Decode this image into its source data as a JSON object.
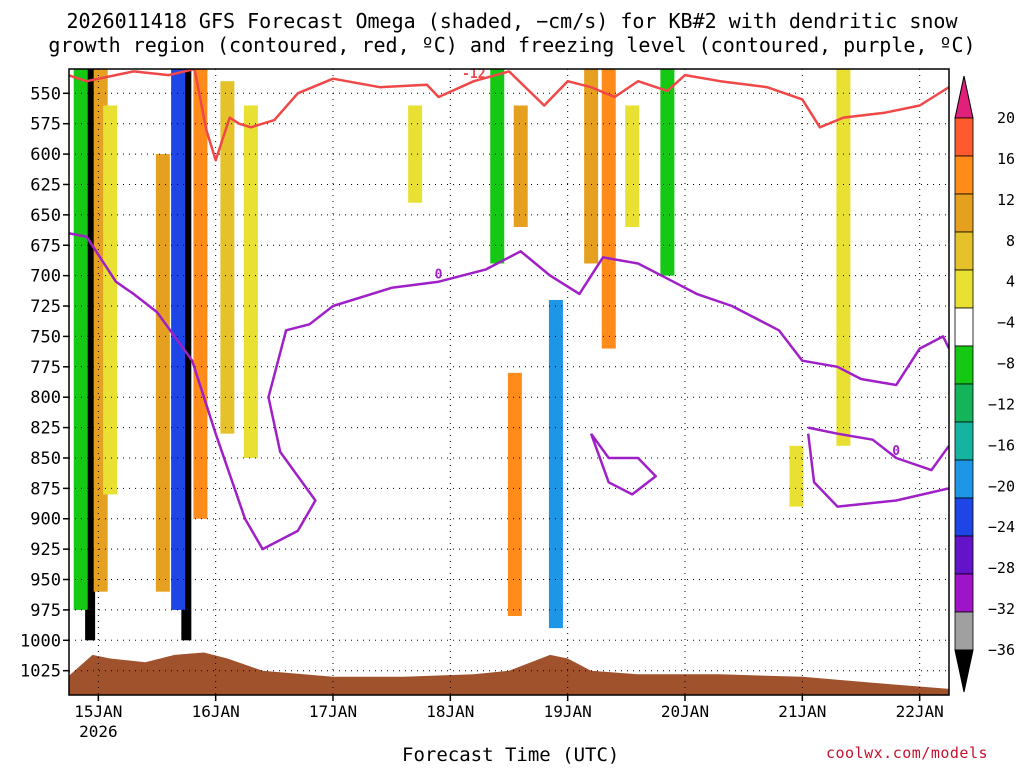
{
  "chart_data": {
    "type": "heatmap",
    "title_line1": "2026011418 GFS Forecast Omega (shaded, −cm/s) for KB#2 with dendritic snow",
    "title_line2": "growth region (contoured, red, ºC) and freezing level (contoured, purple, ºC)",
    "xlabel": "Forecast Time (UTC)",
    "ylabel": "Pressure (hPa)",
    "credit": "coolwx.com/models",
    "x_ticks": [
      {
        "day": 15,
        "label": "15JAN",
        "sublabel": "2026"
      },
      {
        "day": 16,
        "label": "16JAN"
      },
      {
        "day": 17,
        "label": "17JAN"
      },
      {
        "day": 18,
        "label": "18JAN"
      },
      {
        "day": 19,
        "label": "19JAN"
      },
      {
        "day": 20,
        "label": "20JAN"
      },
      {
        "day": 21,
        "label": "21JAN"
      },
      {
        "day": 22,
        "label": "22JAN"
      }
    ],
    "xlim_days": [
      14.75,
      22.25
    ],
    "y_ticks": [
      550,
      575,
      600,
      625,
      650,
      675,
      700,
      725,
      750,
      775,
      800,
      825,
      850,
      875,
      900,
      925,
      950,
      975,
      1000,
      1025
    ],
    "ylim_hpa": [
      530,
      1045
    ],
    "colorbar": {
      "labels": [
        "20",
        "16",
        "12",
        "8",
        "4",
        "−4",
        "−8",
        "−12",
        "−16",
        "−20",
        "−24",
        "−28",
        "−32",
        "−36"
      ],
      "colors": [
        "#e02a4a",
        "#ff5a2e",
        "#ff8c1a",
        "#e6a020",
        "#e6c22a",
        "#e8e032",
        "#ffffff",
        "#14c814",
        "#14b45a",
        "#14b4a0",
        "#1e96e6",
        "#1e46e6",
        "#6414c8",
        "#a014c8",
        "#a0a0a0"
      ],
      "top_arrow_color": "#e0207a",
      "bottom_arrow_color": "#000000"
    },
    "omega_columns": [
      {
        "day": 14.93,
        "p_top": 530,
        "p_bot": 1000,
        "color": "#000000"
      },
      {
        "day": 14.85,
        "p_top": 530,
        "p_bot": 975,
        "color": "#14c814"
      },
      {
        "day": 15.02,
        "p_top": 530,
        "p_bot": 960,
        "color": "#e6a020"
      },
      {
        "day": 15.1,
        "p_top": 560,
        "p_bot": 880,
        "color": "#e8e032"
      },
      {
        "day": 15.55,
        "p_top": 600,
        "p_bot": 960,
        "color": "#e6a020"
      },
      {
        "day": 15.75,
        "p_top": 530,
        "p_bot": 1000,
        "color": "#000000"
      },
      {
        "day": 15.68,
        "p_top": 530,
        "p_bot": 975,
        "color": "#1e46e6"
      },
      {
        "day": 15.87,
        "p_top": 530,
        "p_bot": 900,
        "color": "#ff8c1a"
      },
      {
        "day": 16.1,
        "p_top": 540,
        "p_bot": 830,
        "color": "#e6c22a"
      },
      {
        "day": 16.3,
        "p_top": 560,
        "p_bot": 850,
        "color": "#e8e032"
      },
      {
        "day": 17.7,
        "p_top": 560,
        "p_bot": 640,
        "color": "#e8e032"
      },
      {
        "day": 18.4,
        "p_top": 530,
        "p_bot": 690,
        "color": "#14c814"
      },
      {
        "day": 18.6,
        "p_top": 560,
        "p_bot": 660,
        "color": "#e6a020"
      },
      {
        "day": 18.55,
        "p_top": 780,
        "p_bot": 980,
        "color": "#ff8c1a"
      },
      {
        "day": 18.9,
        "p_top": 720,
        "p_bot": 990,
        "color": "#1e96e6"
      },
      {
        "day": 19.2,
        "p_top": 530,
        "p_bot": 690,
        "color": "#e6a020"
      },
      {
        "day": 19.35,
        "p_top": 530,
        "p_bot": 760,
        "color": "#ff8c1a"
      },
      {
        "day": 19.55,
        "p_top": 560,
        "p_bot": 660,
        "color": "#e8e032"
      },
      {
        "day": 19.85,
        "p_top": 530,
        "p_bot": 700,
        "color": "#14c814"
      },
      {
        "day": 20.95,
        "p_top": 840,
        "p_bot": 890,
        "color": "#e8e032"
      },
      {
        "day": 21.35,
        "p_top": 530,
        "p_bot": 840,
        "color": "#e8e032"
      }
    ],
    "terrain_color": "#a0522d",
    "contours": [
      {
        "label": "-12",
        "color": "#f04848",
        "points": [
          [
            14.74,
            535
          ],
          [
            14.9,
            540
          ],
          [
            15.3,
            532
          ],
          [
            15.6,
            535
          ],
          [
            15.82,
            530
          ],
          [
            15.92,
            580
          ],
          [
            16.0,
            605
          ],
          [
            16.12,
            570
          ],
          [
            16.2,
            575
          ],
          [
            16.3,
            578
          ],
          [
            16.5,
            572
          ],
          [
            16.7,
            550
          ],
          [
            17.0,
            538
          ],
          [
            17.4,
            545
          ],
          [
            17.8,
            543
          ],
          [
            17.9,
            553
          ],
          [
            18.2,
            540
          ],
          [
            18.5,
            532
          ],
          [
            18.8,
            560
          ],
          [
            19.0,
            540
          ],
          [
            19.2,
            545
          ],
          [
            19.4,
            553
          ],
          [
            19.6,
            540
          ],
          [
            19.85,
            548
          ],
          [
            20.0,
            535
          ],
          [
            20.3,
            540
          ],
          [
            20.7,
            545
          ],
          [
            21.0,
            555
          ],
          [
            21.15,
            578
          ],
          [
            21.35,
            570
          ],
          [
            21.7,
            566
          ],
          [
            22.0,
            560
          ],
          [
            22.25,
            545
          ]
        ]
      },
      {
        "label": "0",
        "color": "#a020c8",
        "points": [
          [
            14.74,
            665
          ],
          [
            14.9,
            668
          ],
          [
            15.15,
            705
          ],
          [
            15.3,
            715
          ],
          [
            15.5,
            730
          ],
          [
            15.8,
            770
          ],
          [
            16.0,
            830
          ],
          [
            16.25,
            900
          ],
          [
            16.4,
            925
          ],
          [
            16.7,
            910
          ],
          [
            16.85,
            885
          ],
          [
            16.55,
            845
          ],
          [
            16.45,
            800
          ],
          [
            16.6,
            745
          ],
          [
            16.8,
            740
          ],
          [
            17.0,
            725
          ],
          [
            17.5,
            710
          ],
          [
            17.9,
            705
          ],
          [
            18.3,
            695
          ],
          [
            18.6,
            680
          ],
          [
            18.85,
            700
          ],
          [
            19.1,
            715
          ],
          [
            19.3,
            685
          ],
          [
            19.6,
            690
          ],
          [
            19.9,
            705
          ],
          [
            20.1,
            715
          ],
          [
            20.4,
            725
          ],
          [
            20.8,
            745
          ],
          [
            21.0,
            770
          ],
          [
            21.3,
            775
          ],
          [
            21.5,
            785
          ],
          [
            21.8,
            790
          ],
          [
            22.0,
            760
          ],
          [
            22.2,
            750
          ],
          [
            22.25,
            760
          ]
        ]
      },
      {
        "label": "",
        "color": "#a020c8",
        "points": [
          [
            19.2,
            830
          ],
          [
            19.35,
            870
          ],
          [
            19.55,
            880
          ],
          [
            19.75,
            865
          ],
          [
            19.6,
            850
          ],
          [
            19.35,
            850
          ],
          [
            19.2,
            830
          ]
        ]
      },
      {
        "label": "",
        "color": "#a020c8",
        "points": [
          [
            21.05,
            830
          ],
          [
            21.1,
            870
          ],
          [
            21.3,
            890
          ],
          [
            21.8,
            885
          ],
          [
            22.25,
            875
          ]
        ]
      },
      {
        "label": "0",
        "color": "#a020c8",
        "points": [
          [
            21.05,
            825
          ],
          [
            21.3,
            830
          ],
          [
            21.6,
            835
          ],
          [
            21.8,
            850
          ],
          [
            22.1,
            860
          ],
          [
            22.25,
            840
          ]
        ]
      }
    ]
  }
}
